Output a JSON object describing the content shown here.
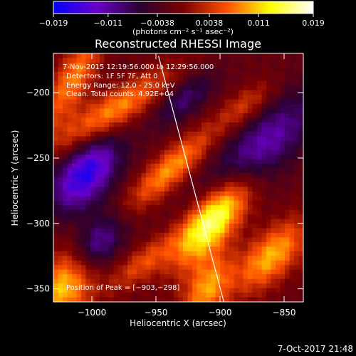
{
  "chart_data": {
    "type": "heatmap",
    "title": "Reconstructed RHESSI Image",
    "xlabel": "Heliocentric X (arcsec)",
    "ylabel": "Heliocentric Y (arcsec)",
    "xlim": [
      -1030,
      -835
    ],
    "ylim": [
      -360,
      -170
    ],
    "x_ticks": [
      -1000,
      -950,
      -900,
      -850
    ],
    "y_ticks": [
      -200,
      -250,
      -300,
      -350
    ],
    "x_tick_labels": [
      "−1000",
      "−950",
      "−900",
      "−850"
    ],
    "y_tick_labels": [
      "−200",
      "−250",
      "−300",
      "−350"
    ],
    "colorbar": {
      "min": -0.019,
      "max": 0.019,
      "tick_values": [
        -0.019,
        -0.011,
        -0.0038,
        0.0038,
        0.011,
        0.019
      ],
      "tick_labels": [
        "−0.019",
        "−0.011",
        "−0.0038",
        "0.0038",
        "0.011",
        "0.019"
      ],
      "stops": [
        "#0000ff",
        "#6a00c8",
        "#2a0030",
        "#7a0000",
        "#ff5000",
        "#ffff00",
        "#ffffff"
      ]
    },
    "annotations": [
      "7-Nov-2015 12:19:56.000 to 12:29:56.000",
      "Detectors: 1F 5F 7F, Att 0",
      "Energy Range: 12.0 - 25.0 keV",
      "Clean.   Total counts: 4.92E+04"
    ],
    "peak_label": "Position of Peak = [−903,−298]",
    "peak_position": [
      -903,
      -298
    ],
    "limb_line": [
      [
        -948,
        -172
      ],
      [
        -897,
        -360
      ]
    ],
    "grid": false,
    "legend": "colorbar-top"
  },
  "colorbar_units": "(photons cm⁻² s⁻¹ asec⁻²)",
  "footer_timestamp": "7-Oct-2017 21:48"
}
